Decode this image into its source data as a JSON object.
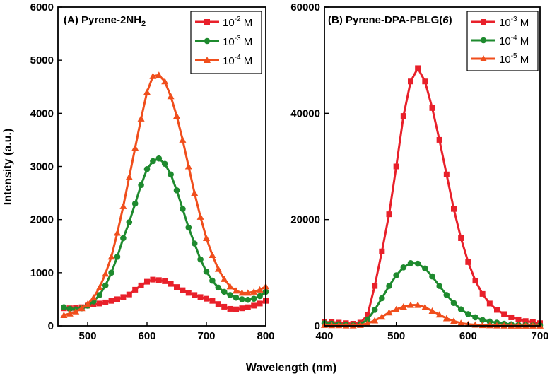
{
  "shared_xlabel": "Wavelength (nm)",
  "shared_ylabel": "Intensity (a.u.)",
  "chart_data": [
    {
      "type": "line",
      "title": "(A) Pyrene-2NH",
      "title_subscript": "2",
      "xlabel": "Wavelength (nm)",
      "ylabel": "Intensity (a.u.)",
      "xlim": [
        450,
        800
      ],
      "ylim": [
        0,
        6000
      ],
      "x_ticks": [
        "500",
        "600",
        "700",
        "800"
      ],
      "y_ticks": [
        "0",
        "1000",
        "2000",
        "3000",
        "4000",
        "5000",
        "6000"
      ],
      "legend_position": "top-right",
      "series": [
        {
          "name": "10-2 M",
          "legend_base": "10",
          "legend_exp": "-2",
          "legend_unit": " M",
          "color": "#e8202a",
          "marker": "square",
          "points": [
            [
              460,
              330
            ],
            [
              470,
              330
            ],
            [
              480,
              340
            ],
            [
              490,
              350
            ],
            [
              500,
              380
            ],
            [
              510,
              400
            ],
            [
              520,
              420
            ],
            [
              530,
              440
            ],
            [
              540,
              470
            ],
            [
              550,
              500
            ],
            [
              560,
              540
            ],
            [
              570,
              590
            ],
            [
              580,
              680
            ],
            [
              590,
              760
            ],
            [
              600,
              830
            ],
            [
              610,
              870
            ],
            [
              620,
              860
            ],
            [
              630,
              840
            ],
            [
              640,
              790
            ],
            [
              650,
              730
            ],
            [
              660,
              670
            ],
            [
              670,
              620
            ],
            [
              680,
              580
            ],
            [
              690,
              540
            ],
            [
              700,
              510
            ],
            [
              710,
              470
            ],
            [
              720,
              410
            ],
            [
              730,
              360
            ],
            [
              740,
              320
            ],
            [
              750,
              310
            ],
            [
              760,
              330
            ],
            [
              770,
              350
            ],
            [
              780,
              380
            ],
            [
              790,
              420
            ],
            [
              800,
              470
            ]
          ]
        },
        {
          "name": "10-3 M",
          "legend_base": "10",
          "legend_exp": "-3",
          "legend_unit": " M",
          "color": "#1e8a2e",
          "marker": "circle",
          "points": [
            [
              460,
              350
            ],
            [
              470,
              320
            ],
            [
              480,
              310
            ],
            [
              490,
              330
            ],
            [
              500,
              380
            ],
            [
              510,
              460
            ],
            [
              520,
              580
            ],
            [
              530,
              760
            ],
            [
              540,
              1000
            ],
            [
              550,
              1300
            ],
            [
              560,
              1650
            ],
            [
              570,
              1950
            ],
            [
              580,
              2300
            ],
            [
              590,
              2650
            ],
            [
              600,
              2950
            ],
            [
              610,
              3100
            ],
            [
              620,
              3150
            ],
            [
              630,
              3050
            ],
            [
              640,
              2850
            ],
            [
              650,
              2550
            ],
            [
              660,
              2200
            ],
            [
              670,
              1850
            ],
            [
              680,
              1550
            ],
            [
              690,
              1250
            ],
            [
              700,
              1020
            ],
            [
              710,
              850
            ],
            [
              720,
              720
            ],
            [
              730,
              640
            ],
            [
              740,
              580
            ],
            [
              750,
              530
            ],
            [
              760,
              500
            ],
            [
              770,
              490
            ],
            [
              780,
              510
            ],
            [
              790,
              560
            ],
            [
              800,
              640
            ]
          ]
        },
        {
          "name": "10-4 M",
          "legend_base": "10",
          "legend_exp": "-4",
          "legend_unit": " M",
          "color": "#f04e1c",
          "marker": "triangle",
          "points": [
            [
              460,
              200
            ],
            [
              470,
              230
            ],
            [
              480,
              270
            ],
            [
              490,
              330
            ],
            [
              500,
              410
            ],
            [
              510,
              530
            ],
            [
              520,
              720
            ],
            [
              530,
              980
            ],
            [
              540,
              1300
            ],
            [
              550,
              1750
            ],
            [
              560,
              2250
            ],
            [
              570,
              2800
            ],
            [
              580,
              3350
            ],
            [
              590,
              3900
            ],
            [
              600,
              4400
            ],
            [
              610,
              4700
            ],
            [
              620,
              4720
            ],
            [
              630,
              4600
            ],
            [
              640,
              4320
            ],
            [
              650,
              3950
            ],
            [
              660,
              3500
            ],
            [
              670,
              3000
            ],
            [
              680,
              2500
            ],
            [
              690,
              2050
            ],
            [
              700,
              1650
            ],
            [
              710,
              1330
            ],
            [
              720,
              1070
            ],
            [
              730,
              880
            ],
            [
              740,
              740
            ],
            [
              750,
              660
            ],
            [
              760,
              620
            ],
            [
              770,
              620
            ],
            [
              780,
              640
            ],
            [
              790,
              680
            ],
            [
              800,
              740
            ]
          ]
        }
      ]
    },
    {
      "type": "line",
      "title": "(B) Pyrene-DPA-PBLG(",
      "title_italic": "6",
      "title_end": ")",
      "xlabel": "Wavelength (nm)",
      "xlim": [
        400,
        700
      ],
      "ylim": [
        0,
        60000
      ],
      "x_ticks": [
        "400",
        "500",
        "600",
        "700"
      ],
      "y_ticks": [
        "0",
        "20000",
        "40000",
        "60000"
      ],
      "legend_position": "top-right",
      "series": [
        {
          "name": "10-3 M",
          "legend_base": "10",
          "legend_exp": "-3",
          "legend_unit": " M",
          "color": "#e8202a",
          "marker": "square",
          "points": [
            [
              400,
              700
            ],
            [
              410,
              700
            ],
            [
              420,
              600
            ],
            [
              430,
              500
            ],
            [
              440,
              400
            ],
            [
              450,
              600
            ],
            [
              460,
              2000
            ],
            [
              470,
              7500
            ],
            [
              480,
              14000
            ],
            [
              490,
              21000
            ],
            [
              500,
              30000
            ],
            [
              510,
              39500
            ],
            [
              520,
              46000
            ],
            [
              530,
              48500
            ],
            [
              540,
              46000
            ],
            [
              550,
              41000
            ],
            [
              560,
              35000
            ],
            [
              570,
              28500
            ],
            [
              580,
              22000
            ],
            [
              590,
              16500
            ],
            [
              600,
              12000
            ],
            [
              610,
              8500
            ],
            [
              620,
              6000
            ],
            [
              630,
              4200
            ],
            [
              640,
              3000
            ],
            [
              650,
              2200
            ],
            [
              660,
              1600
            ],
            [
              670,
              1200
            ],
            [
              680,
              900
            ],
            [
              690,
              700
            ],
            [
              700,
              500
            ]
          ]
        },
        {
          "name": "10-4 M",
          "legend_base": "10",
          "legend_exp": "-4",
          "legend_unit": " M",
          "color": "#1e8a2e",
          "marker": "circle",
          "points": [
            [
              400,
              500
            ],
            [
              410,
              400
            ],
            [
              420,
              300
            ],
            [
              430,
              200
            ],
            [
              440,
              100
            ],
            [
              450,
              300
            ],
            [
              460,
              1200
            ],
            [
              470,
              3000
            ],
            [
              480,
              5200
            ],
            [
              490,
              7500
            ],
            [
              500,
              9500
            ],
            [
              510,
              11000
            ],
            [
              520,
              11800
            ],
            [
              530,
              11700
            ],
            [
              540,
              10800
            ],
            [
              550,
              9300
            ],
            [
              560,
              7500
            ],
            [
              570,
              5800
            ],
            [
              580,
              4300
            ],
            [
              590,
              3100
            ],
            [
              600,
              2200
            ],
            [
              610,
              1600
            ],
            [
              620,
              1100
            ],
            [
              630,
              800
            ],
            [
              640,
              600
            ],
            [
              650,
              400
            ],
            [
              660,
              300
            ],
            [
              670,
              200
            ],
            [
              680,
              150
            ],
            [
              690,
              100
            ],
            [
              700,
              100
            ]
          ]
        },
        {
          "name": "10-5 M",
          "legend_base": "10",
          "legend_exp": "-5",
          "legend_unit": " M",
          "color": "#f04e1c",
          "marker": "triangle",
          "points": [
            [
              400,
              150
            ],
            [
              410,
              100
            ],
            [
              420,
              100
            ],
            [
              430,
              50
            ],
            [
              440,
              50
            ],
            [
              450,
              150
            ],
            [
              460,
              450
            ],
            [
              470,
              1000
            ],
            [
              480,
              1700
            ],
            [
              490,
              2500
            ],
            [
              500,
              3100
            ],
            [
              510,
              3600
            ],
            [
              520,
              3900
            ],
            [
              530,
              3900
            ],
            [
              540,
              3500
            ],
            [
              550,
              2800
            ],
            [
              560,
              2100
            ],
            [
              570,
              1400
            ],
            [
              580,
              900
            ],
            [
              590,
              500
            ],
            [
              600,
              300
            ],
            [
              610,
              200
            ],
            [
              620,
              120
            ],
            [
              630,
              80
            ],
            [
              640,
              50
            ],
            [
              650,
              30
            ],
            [
              660,
              20
            ],
            [
              670,
              20
            ],
            [
              680,
              10
            ],
            [
              690,
              10
            ],
            [
              700,
              10
            ]
          ]
        }
      ]
    }
  ]
}
